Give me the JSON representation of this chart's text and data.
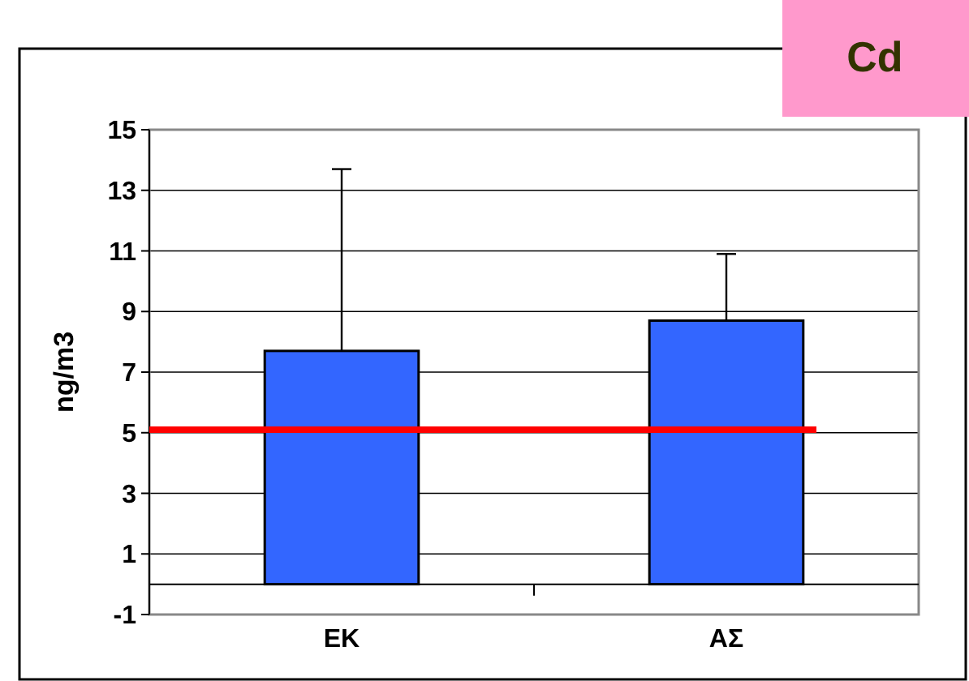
{
  "chart_data": {
    "type": "bar",
    "title": "Cd",
    "ylabel": "ng/m3",
    "categories": [
      "ΕΚ",
      "ΑΣ"
    ],
    "values": [
      7.7,
      8.7
    ],
    "color": "#3366ff",
    "errors": [
      [
        7.7,
        13.7
      ],
      [
        8.7,
        10.9
      ]
    ],
    "ylim": [
      -1,
      15
    ],
    "yticks": [
      -1,
      1,
      3,
      5,
      7,
      9,
      11,
      13,
      15
    ],
    "grid": "y",
    "ref_lines": [
      {
        "axis": "y",
        "value": 5.1,
        "color": "#ff0000"
      }
    ]
  }
}
